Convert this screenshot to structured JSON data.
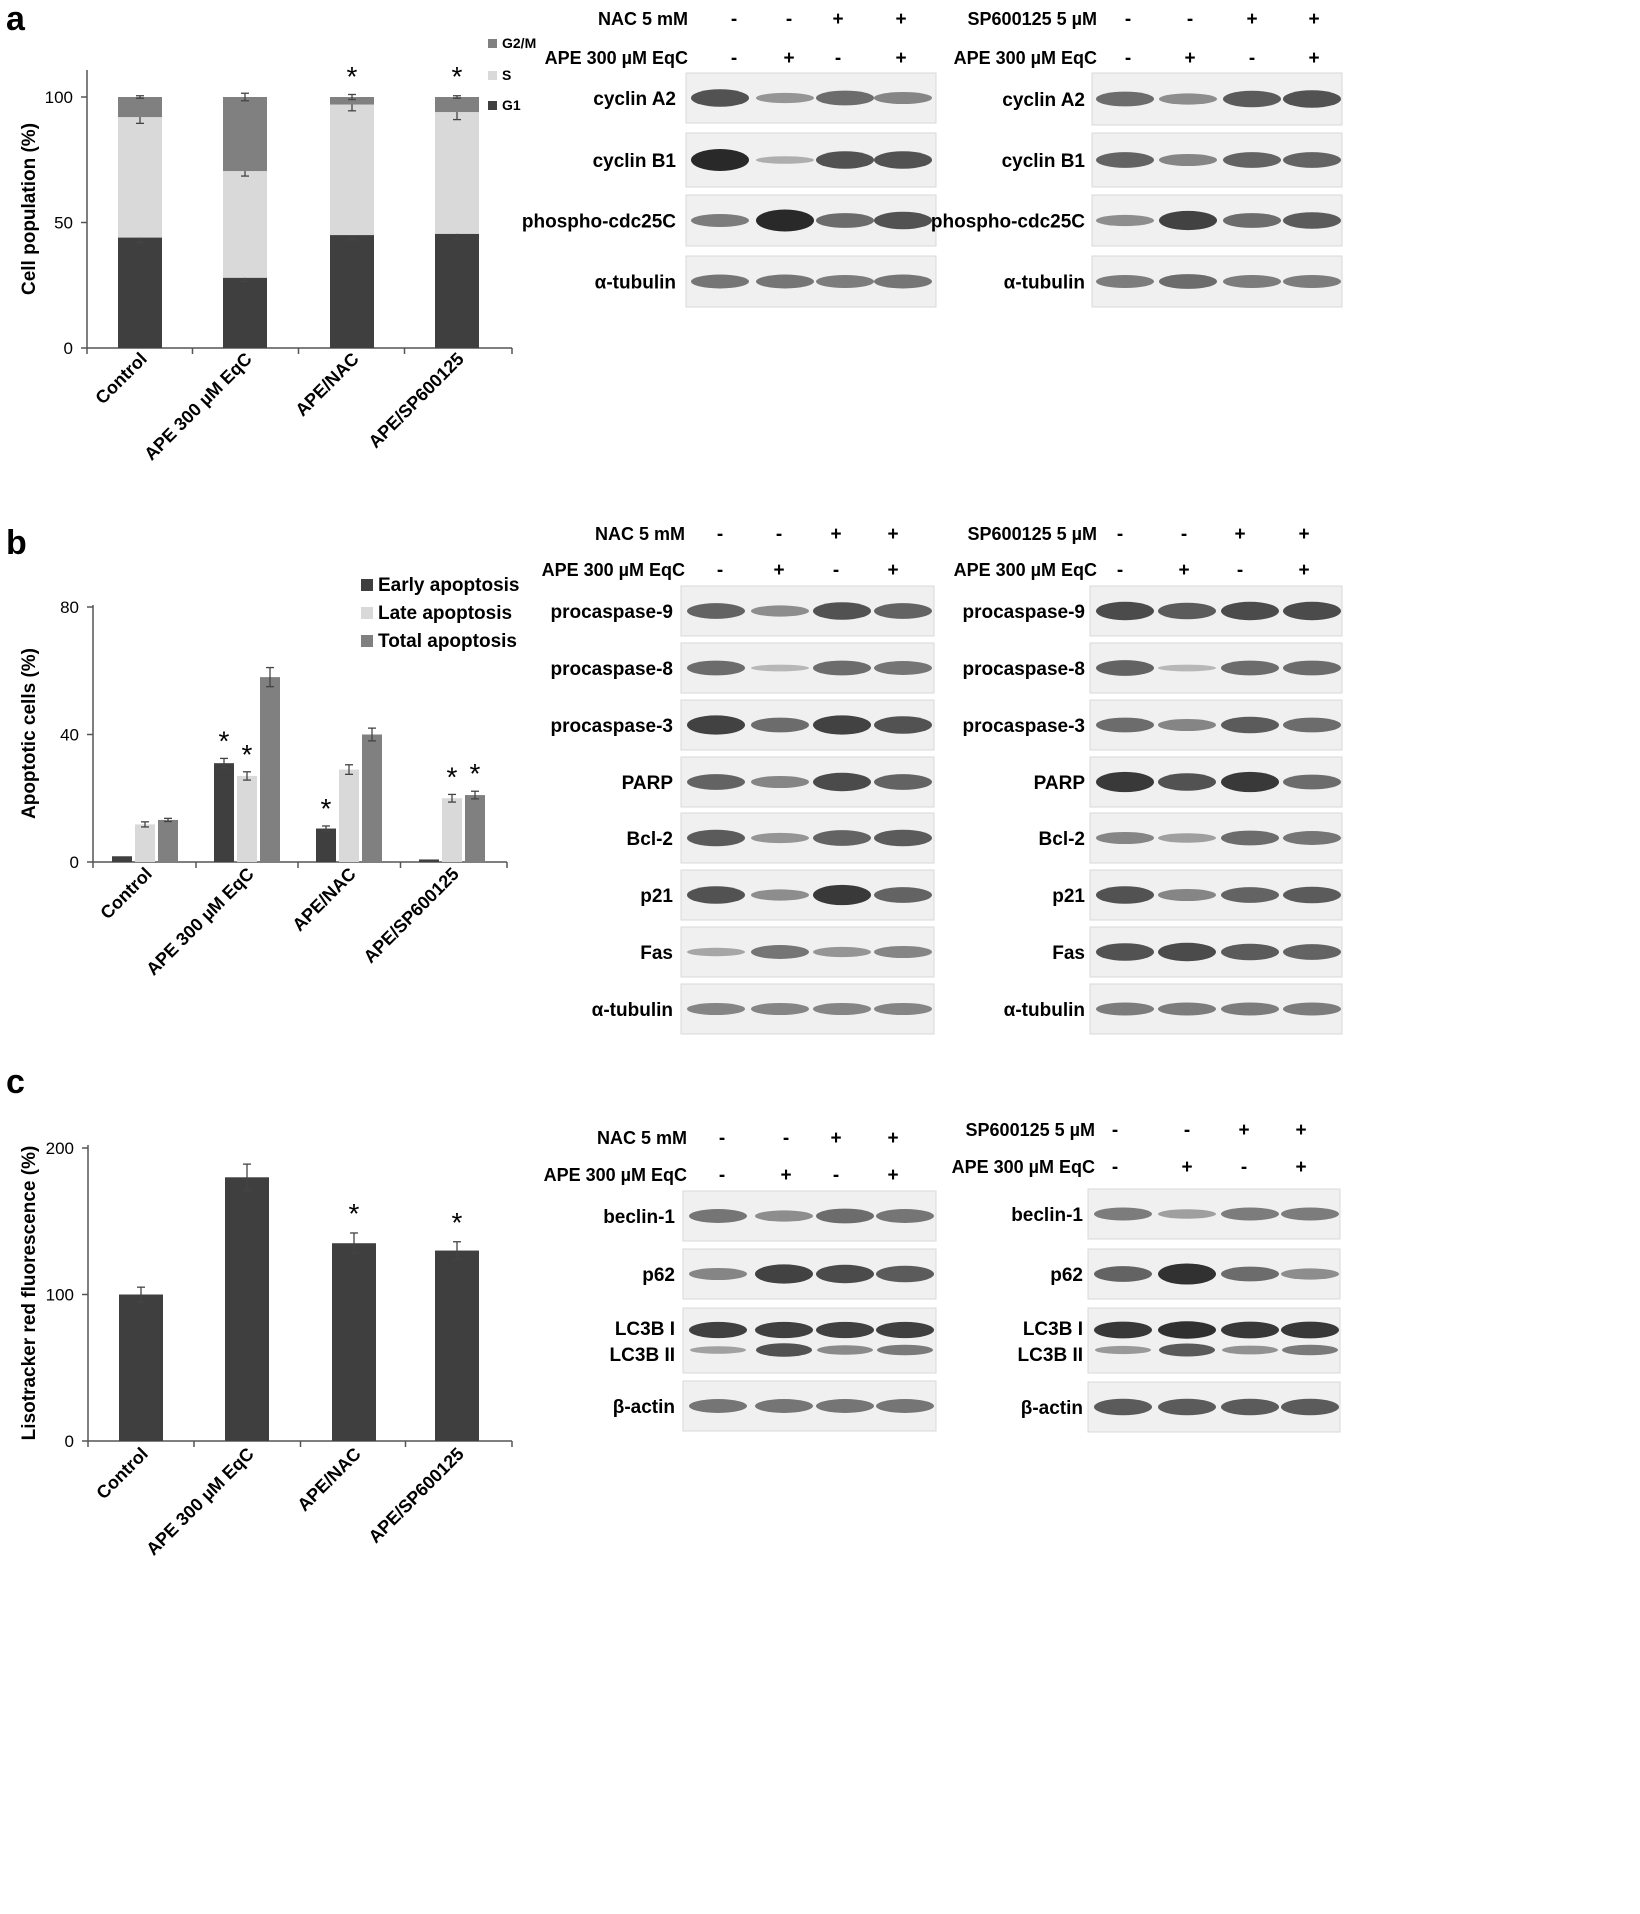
{
  "panels": [
    {
      "label": "a",
      "chart": {
        "type": "stacked-bar",
        "ylabel": "Cell population (%)",
        "ylim": [
          0,
          110
        ],
        "yticks": [
          0,
          50,
          100
        ],
        "categories": [
          "Control",
          "APE 300 µM EqC",
          "APE/NAC",
          "APE/SP600125"
        ],
        "series": [
          {
            "name": "G1",
            "color": "#3f3f3f",
            "values": [
              44,
              28,
              45,
              45.5
            ],
            "errors": [
              2,
              1.5,
              2,
              2
            ]
          },
          {
            "name": "S",
            "color": "#d9d9d9",
            "values": [
              48,
              42.5,
              52,
              48.5
            ],
            "errors": [
              2.5,
              2,
              2.5,
              3
            ]
          },
          {
            "name": "G2/M",
            "color": "#808080",
            "values": [
              8,
              29.5,
              3,
              6
            ],
            "errors": [
              0.5,
              1.5,
              1,
              0.5
            ]
          }
        ],
        "stars": [
          "",
          "",
          "*",
          "*"
        ],
        "legend": [
          "G2/M",
          "S",
          "G1"
        ]
      },
      "blots": [
        {
          "treatment1": {
            "label": "NAC 5 mM",
            "signs": [
              "-",
              "-",
              "+",
              "+"
            ]
          },
          "treatment2": {
            "label": "APE 300 µM EqC",
            "signs": [
              "-",
              "+",
              "-",
              "+"
            ]
          },
          "rows": [
            {
              "label": "cyclin A2",
              "intensity": [
                0.75,
                0.35,
                0.6,
                0.45
              ]
            },
            {
              "label": "cyclin B1",
              "intensity": [
                1.0,
                0.2,
                0.75,
                0.75
              ]
            },
            {
              "label": "phospho-cdc25C",
              "intensity": [
                0.5,
                1.0,
                0.6,
                0.75
              ]
            },
            {
              "label": "α-tubulin",
              "intensity": [
                0.55,
                0.55,
                0.5,
                0.55
              ]
            }
          ]
        },
        {
          "treatment1": {
            "label": "SP600125 5 µM",
            "signs": [
              "-",
              "-",
              "+",
              "+"
            ]
          },
          "treatment2": {
            "label": "APE 300 µM EqC",
            "signs": [
              "-",
              "+",
              "-",
              "+"
            ]
          },
          "rows": [
            {
              "label": "cyclin A2",
              "intensity": [
                0.6,
                0.4,
                0.7,
                0.75
              ]
            },
            {
              "label": "cyclin B1",
              "intensity": [
                0.65,
                0.45,
                0.65,
                0.65
              ]
            },
            {
              "label": "phospho-cdc25C",
              "intensity": [
                0.4,
                0.85,
                0.6,
                0.7
              ]
            },
            {
              "label": "α-tubulin",
              "intensity": [
                0.5,
                0.6,
                0.5,
                0.5
              ]
            }
          ]
        }
      ]
    },
    {
      "label": "b",
      "chart": {
        "type": "grouped-bar",
        "ylabel": "Apoptotic cells (%)",
        "ylim": [
          0,
          80
        ],
        "yticks": [
          0,
          40,
          80
        ],
        "categories": [
          "Control",
          "APE 300 µM EqC",
          "APE/NAC",
          "APE/SP600125"
        ],
        "series": [
          {
            "name": "Early apoptosis",
            "color": "#3f3f3f",
            "values": [
              1.8,
              31,
              10.5,
              0.8
            ],
            "errors": [
              0,
              1.5,
              0.8,
              0
            ],
            "stars": [
              "",
              "*",
              "*",
              ""
            ]
          },
          {
            "name": "Late apoptosis",
            "color": "#d9d9d9",
            "values": [
              11.8,
              27,
              29,
              20
            ],
            "errors": [
              0.8,
              1.3,
              1.5,
              1.2
            ],
            "stars": [
              "",
              "*",
              "",
              "*"
            ]
          },
          {
            "name": "Total apoptosis",
            "color": "#808080",
            "values": [
              13.2,
              58,
              40,
              21
            ],
            "errors": [
              0.5,
              3,
              2,
              1.2
            ],
            "stars": [
              "",
              "",
              "",
              "*"
            ]
          }
        ]
      },
      "blots": [
        {
          "treatment1": {
            "label": "NAC 5 mM",
            "signs": [
              "-",
              "-",
              "+",
              "+"
            ]
          },
          "treatment2": {
            "label": "APE 300 µM EqC",
            "signs": [
              "-",
              "+",
              "-",
              "+"
            ]
          },
          "rows": [
            {
              "label": "procaspase-9",
              "intensity": [
                0.65,
                0.4,
                0.75,
                0.65
              ]
            },
            {
              "label": "procaspase-8",
              "intensity": [
                0.6,
                0.15,
                0.6,
                0.55
              ]
            },
            {
              "label": "procaspase-3",
              "intensity": [
                0.85,
                0.6,
                0.85,
                0.75
              ]
            },
            {
              "label": "PARP",
              "intensity": [
                0.65,
                0.45,
                0.8,
                0.65
              ]
            },
            {
              "label": "Bcl-2",
              "intensity": [
                0.7,
                0.35,
                0.65,
                0.7
              ]
            },
            {
              "label": "p21",
              "intensity": [
                0.75,
                0.4,
                0.9,
                0.65
              ]
            },
            {
              "label": "Fas",
              "intensity": [
                0.25,
                0.55,
                0.35,
                0.45
              ]
            },
            {
              "label": "α-tubulin",
              "intensity": [
                0.45,
                0.45,
                0.45,
                0.45
              ]
            }
          ]
        },
        {
          "treatment1": {
            "label": "SP600125 5 µM",
            "signs": [
              "-",
              "-",
              "+",
              "+"
            ]
          },
          "treatment2": {
            "label": "APE 300 µM EqC",
            "signs": [
              "-",
              "+",
              "-",
              "+"
            ]
          },
          "rows": [
            {
              "label": "procaspase-9",
              "intensity": [
                0.8,
                0.7,
                0.8,
                0.8
              ]
            },
            {
              "label": "procaspase-8",
              "intensity": [
                0.65,
                0.15,
                0.6,
                0.6
              ]
            },
            {
              "label": "procaspase-3",
              "intensity": [
                0.6,
                0.45,
                0.7,
                0.6
              ]
            },
            {
              "label": "PARP",
              "intensity": [
                0.9,
                0.75,
                0.9,
                0.6
              ]
            },
            {
              "label": "Bcl-2",
              "intensity": [
                0.45,
                0.3,
                0.6,
                0.55
              ]
            },
            {
              "label": "p21",
              "intensity": [
                0.75,
                0.45,
                0.65,
                0.7
              ]
            },
            {
              "label": "Fas",
              "intensity": [
                0.75,
                0.8,
                0.7,
                0.65
              ]
            },
            {
              "label": "α-tubulin",
              "intensity": [
                0.5,
                0.5,
                0.5,
                0.5
              ]
            }
          ]
        }
      ]
    },
    {
      "label": "c",
      "chart": {
        "type": "bar",
        "ylabel": "Lisotracker red fluorescence (%)",
        "ylim": [
          0,
          200
        ],
        "yticks": [
          0,
          100,
          200
        ],
        "categories": [
          "Control",
          "APE 300 µM EqC",
          "APE/NAC",
          "APE/SP600125"
        ],
        "color": "#3f3f3f",
        "values": [
          100,
          180,
          135,
          130
        ],
        "errors": [
          5,
          9,
          7,
          6
        ],
        "stars": [
          "",
          "",
          "*",
          "*"
        ]
      },
      "blots": [
        {
          "treatment1": {
            "label": "NAC 5 mM",
            "signs": [
              "-",
              "-",
              "+",
              "+"
            ]
          },
          "treatment2": {
            "label": "APE 300 µM EqC",
            "signs": [
              "-",
              "+",
              "-",
              "+"
            ]
          },
          "rows": [
            {
              "label": "beclin-1",
              "intensity": [
                0.55,
                0.4,
                0.6,
                0.55
              ]
            },
            {
              "label": "p62",
              "intensity": [
                0.45,
                0.85,
                0.8,
                0.7
              ]
            },
            {
              "label": "LC3B I",
              "label2": "LC3B II",
              "intensity": [
                0.85,
                0.85,
                0.85,
                0.85
              ],
              "intensity2": [
                0.3,
                0.8,
                0.45,
                0.55
              ]
            },
            {
              "label": "β-actin",
              "intensity": [
                0.55,
                0.55,
                0.55,
                0.55
              ]
            }
          ]
        },
        {
          "treatment1": {
            "label": "SP600125 5 µM",
            "signs": [
              "-",
              "-",
              "+",
              "+"
            ]
          },
          "treatment2": {
            "label": "APE 300 µM EqC",
            "signs": [
              "-",
              "+",
              "-",
              "+"
            ]
          },
          "rows": [
            {
              "label": "beclin-1",
              "intensity": [
                0.5,
                0.3,
                0.5,
                0.5
              ]
            },
            {
              "label": "p62",
              "intensity": [
                0.65,
                0.95,
                0.6,
                0.4
              ]
            },
            {
              "label": "LC3B I",
              "label2": "LC3B II",
              "intensity": [
                0.9,
                0.95,
                0.9,
                0.9
              ],
              "intensity2": [
                0.35,
                0.75,
                0.4,
                0.55
              ]
            },
            {
              "label": "β-actin",
              "intensity": [
                0.7,
                0.7,
                0.7,
                0.7
              ]
            }
          ]
        }
      ]
    }
  ]
}
